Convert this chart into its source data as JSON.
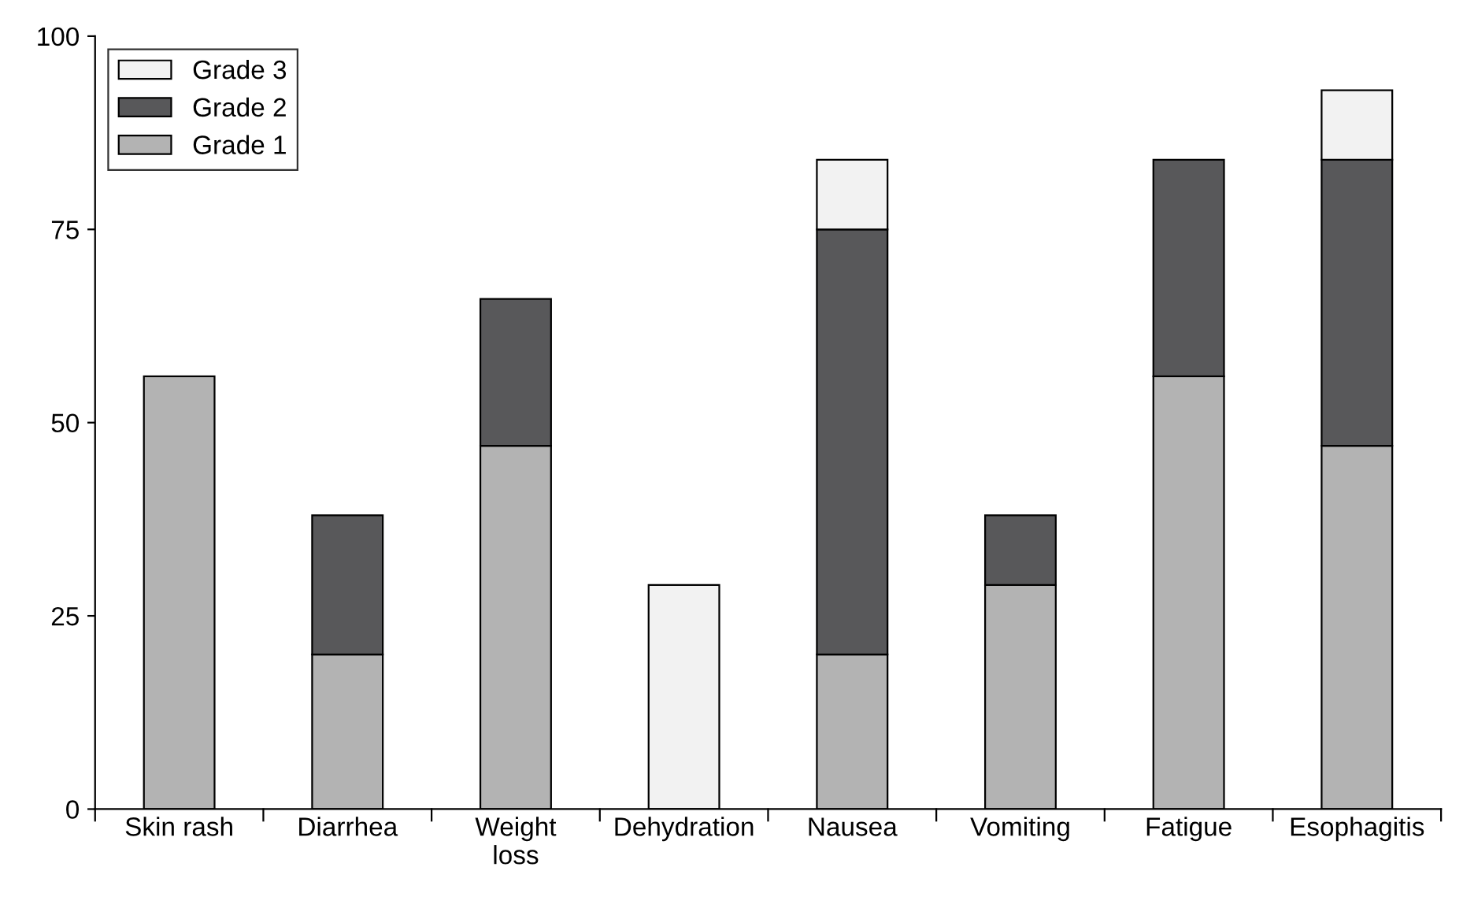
{
  "chart_data": {
    "type": "bar",
    "stacked": true,
    "categories": [
      "Skin rash",
      "Diarrhea",
      "Weight\nloss",
      "Dehydration",
      "Nausea",
      "Vomiting",
      "Fatigue",
      "Esophagitis"
    ],
    "series": [
      {
        "name": "Grade 1",
        "color": "#b3b3b3",
        "values": [
          56,
          20,
          47,
          null,
          20,
          29,
          56,
          47
        ]
      },
      {
        "name": "Grade 2",
        "color": "#58585a",
        "values": [
          null,
          18,
          19,
          null,
          55,
          9,
          28,
          37
        ]
      },
      {
        "name": "Grade 3",
        "color": "#f2f2f2",
        "values": [
          null,
          null,
          null,
          29,
          9,
          null,
          null,
          9
        ]
      }
    ],
    "ylim": [
      0,
      100
    ],
    "yticks": [
      0,
      25,
      50,
      75,
      100
    ],
    "grid": false,
    "legend": "top left"
  }
}
